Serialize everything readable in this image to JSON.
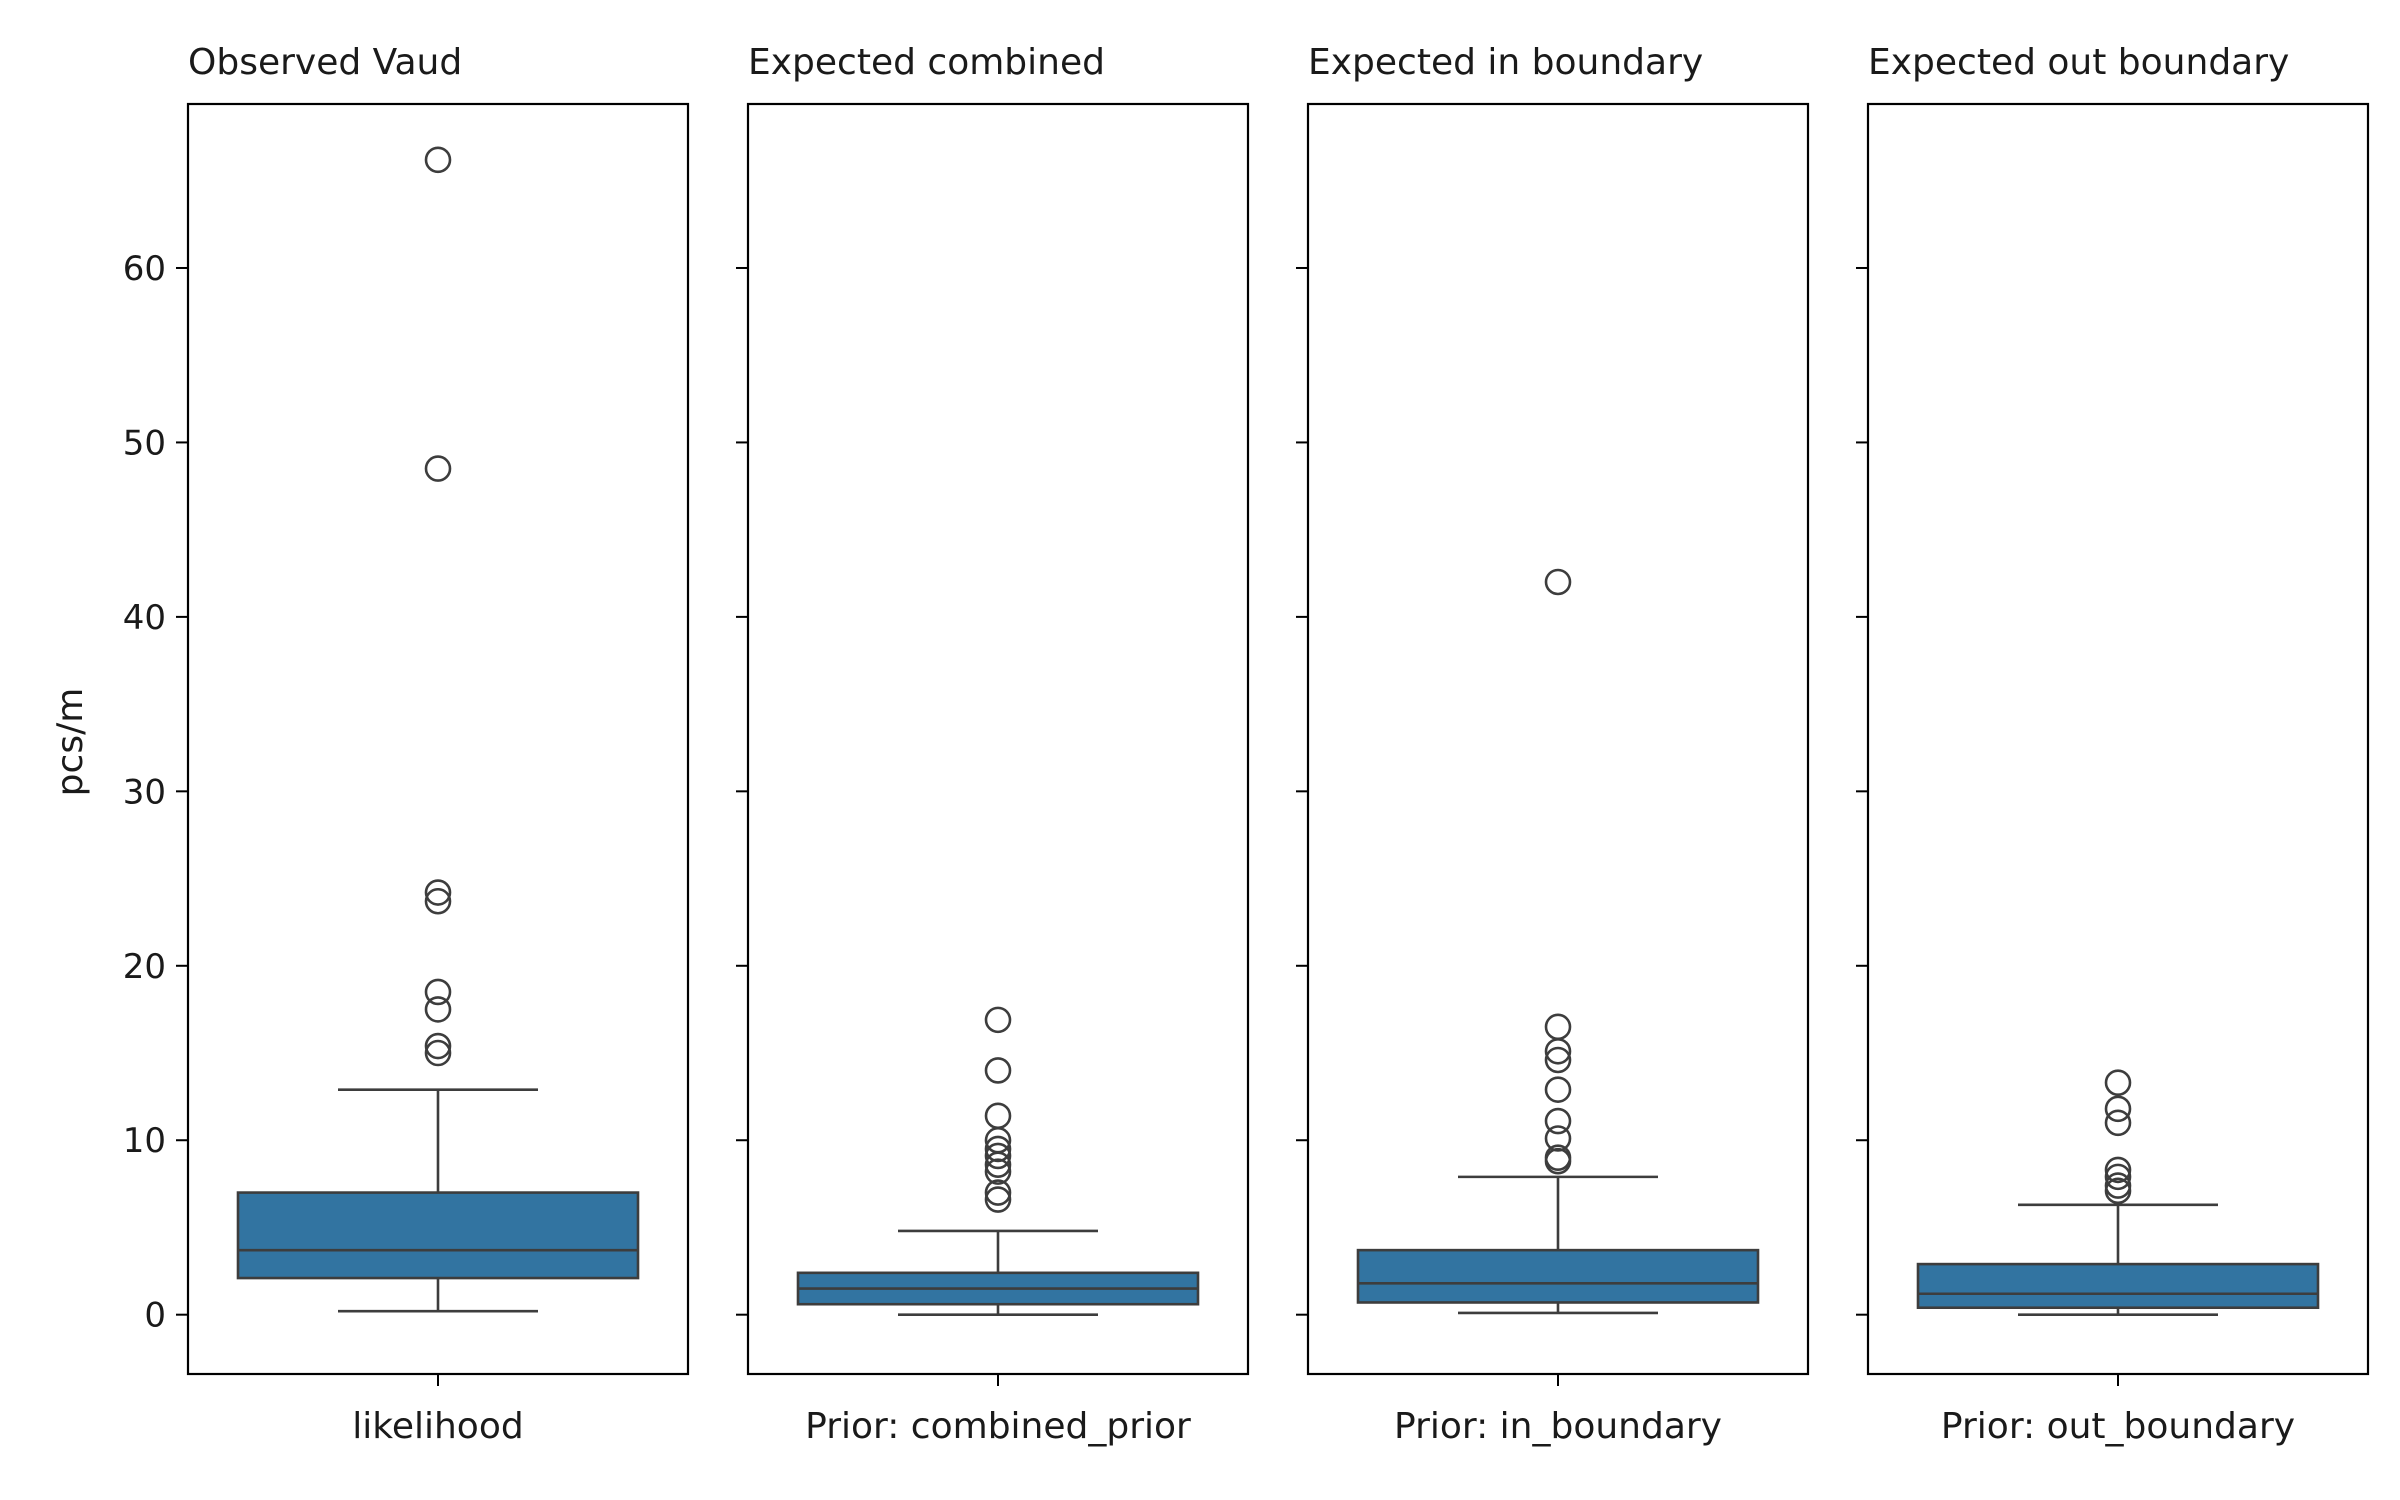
{
  "chart_data": {
    "type": "box",
    "ylabel": "pcs/m",
    "ylim": [
      -3.4,
      69.4
    ],
    "yticks": [
      0,
      10,
      20,
      30,
      40,
      50,
      60
    ],
    "sharey": true,
    "grid": false,
    "box_color": "#3274a1",
    "line_color": "#3d3d3d",
    "panels": [
      {
        "title": "Observed Vaud",
        "category": "likelihood",
        "whisker_low": 0.2,
        "q1": 2.1,
        "median": 3.7,
        "q3": 7.0,
        "whisker_high": 12.9,
        "outliers": [
          15.0,
          15.4,
          17.5,
          18.5,
          23.7,
          24.2,
          48.5,
          66.2
        ]
      },
      {
        "title": "Expected combined",
        "category": "Prior: combined_prior",
        "whisker_low": 0.0,
        "q1": 0.6,
        "median": 1.5,
        "q3": 2.4,
        "whisker_high": 4.8,
        "outliers": [
          6.6,
          7.0,
          8.2,
          8.6,
          9.1,
          9.5,
          10.0,
          11.4,
          14.0,
          16.9
        ]
      },
      {
        "title": "Expected in boundary",
        "category": "Prior: in_boundary",
        "whisker_low": 0.1,
        "q1": 0.7,
        "median": 1.8,
        "q3": 3.7,
        "whisker_high": 7.9,
        "outliers": [
          8.8,
          9.0,
          10.1,
          11.1,
          12.9,
          14.6,
          15.1,
          16.5,
          42.0
        ]
      },
      {
        "title": "Expected out boundary",
        "category": "Prior: out_boundary",
        "whisker_low": 0.0,
        "q1": 0.4,
        "median": 1.2,
        "q3": 2.9,
        "whisker_high": 6.3,
        "outliers": [
          7.1,
          7.4,
          7.9,
          8.3,
          11.0,
          11.8,
          13.3
        ]
      }
    ]
  }
}
